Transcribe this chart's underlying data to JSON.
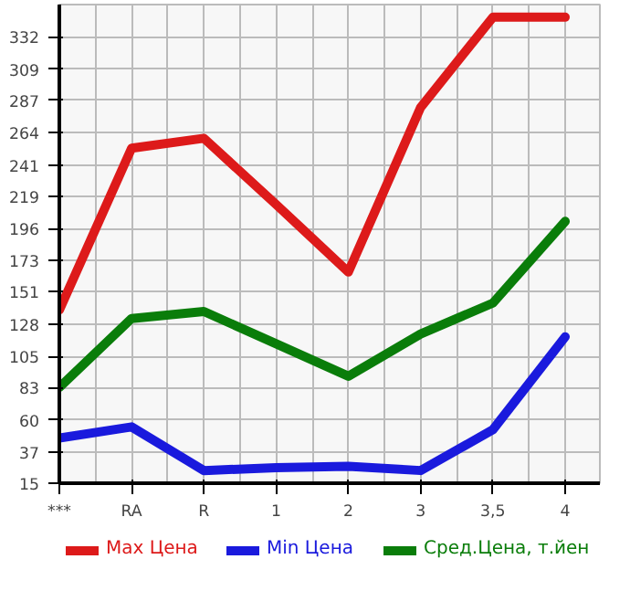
{
  "chart_data": {
    "type": "line",
    "categories": [
      "***",
      "RA",
      "R",
      "1",
      "2",
      "3",
      "3,5",
      "4"
    ],
    "ylim": [
      15,
      355
    ],
    "yticks": [
      15,
      37,
      60,
      83,
      105,
      128,
      151,
      173,
      196,
      219,
      241,
      264,
      287,
      309,
      332
    ],
    "grid": true,
    "legend": "bottom",
    "marker": "none",
    "line_style": "solid",
    "series": [
      {
        "name": "Max Цена",
        "color": "#dd1a1a",
        "values": [
          138,
          253,
          260,
          213,
          165,
          282,
          346,
          346
        ]
      },
      {
        "name": "Min Цена",
        "color": "#1a1add",
        "values": [
          47,
          55,
          24,
          26,
          27,
          24,
          53,
          119
        ]
      },
      {
        "name": "Сред.Цена, т.йен",
        "color": "#0a7d0a",
        "values": [
          83,
          132,
          137,
          114,
          91,
          121,
          143,
          201
        ]
      }
    ]
  }
}
